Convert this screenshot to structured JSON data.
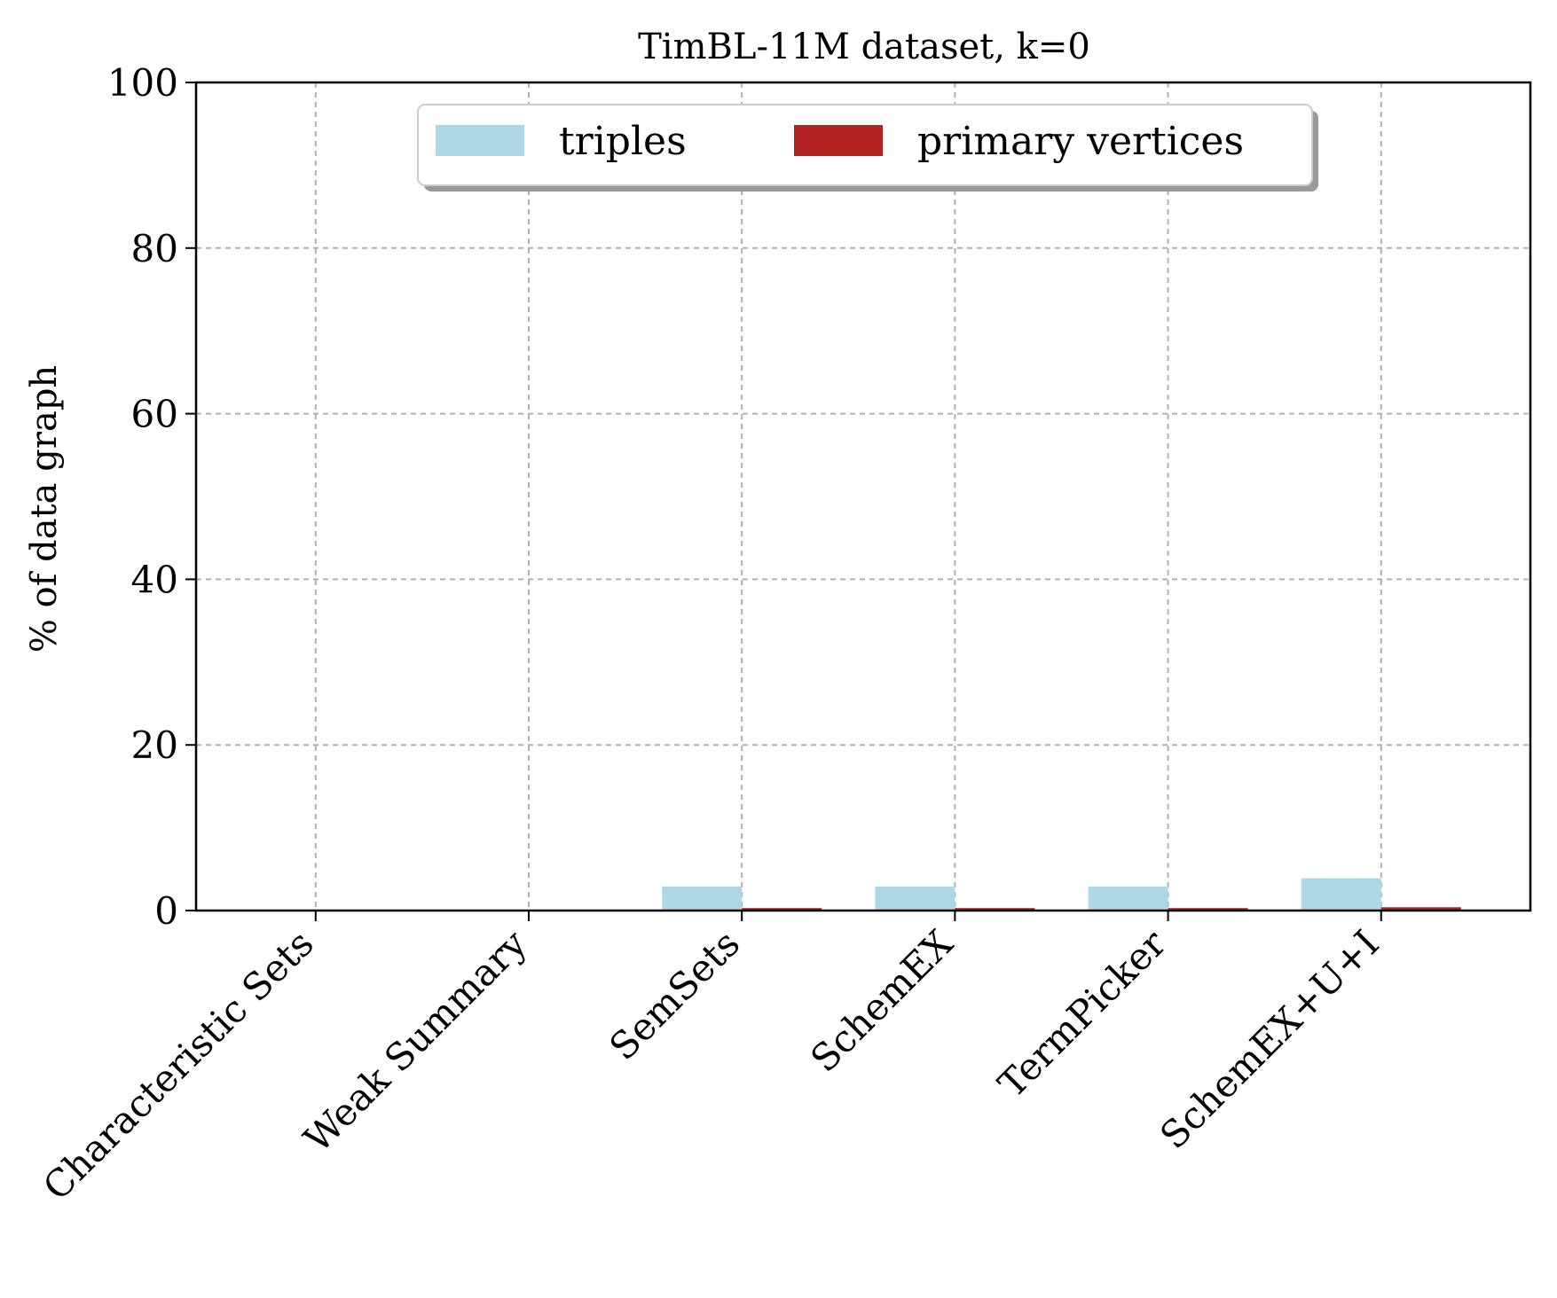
{
  "chart_data": {
    "type": "bar",
    "title": "TimBL-11M dataset, k=0",
    "ylabel": "% of data graph",
    "xlabel": "",
    "categories": [
      "Characteristic Sets",
      "Weak Summary",
      "SemSets",
      "SchemEX",
      "TermPicker",
      "SchemEX+U+I"
    ],
    "series": [
      {
        "name": "triples",
        "values": [
          0,
          0,
          2.9,
          2.9,
          2.9,
          3.9
        ],
        "color": "#add8e6"
      },
      {
        "name": "primary vertices",
        "values": [
          0,
          0,
          0.3,
          0.3,
          0.3,
          0.4
        ],
        "color": "#b22222"
      }
    ],
    "ylim": [
      0,
      100
    ],
    "yticks": [
      "0",
      "20",
      "40",
      "60",
      "80",
      "100"
    ],
    "grid": true,
    "legend_position": "upper center"
  }
}
